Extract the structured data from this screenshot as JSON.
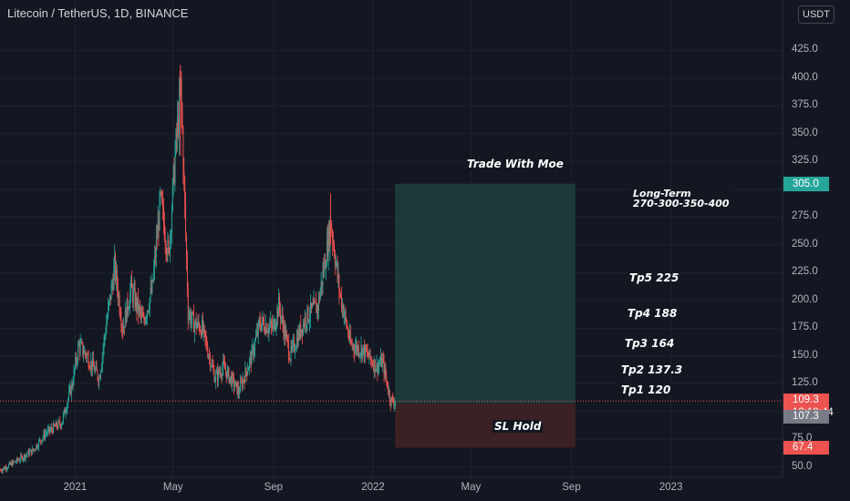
{
  "header": {
    "title": "Litecoin / TetherUS, 1D, BINANCE",
    "currency": "USDT"
  },
  "colors": {
    "up": "#26a69a",
    "down": "#ef5350",
    "target_zone": "#1b3a39",
    "stop_zone": "#3b2024",
    "background": "#131722"
  },
  "chart_data": {
    "type": "candlestick",
    "symbol": "LTCUSDT",
    "interval": "1D",
    "exchange": "BINANCE",
    "ylim": [
      45,
      455
    ],
    "y_ticks": [
      "425.0",
      "400.0",
      "375.0",
      "350.0",
      "325.0",
      "300.0",
      "275.0",
      "250.0",
      "225.0",
      "200.0",
      "175.0",
      "150.0",
      "125.0",
      "100.0",
      "75.0",
      "50.0"
    ],
    "x_ticks": [
      "2021",
      "May",
      "Sep",
      "2022",
      "May",
      "Sep",
      "2023"
    ],
    "close_price_path": [
      [
        "2020-10-01",
        47
      ],
      [
        "2020-10-20",
        55
      ],
      [
        "2020-11-10",
        65
      ],
      [
        "2020-11-25",
        80
      ],
      [
        "2020-12-15",
        90
      ],
      [
        "2020-12-28",
        125
      ],
      [
        "2021-01-05",
        160
      ],
      [
        "2021-01-15",
        150
      ],
      [
        "2021-01-30",
        130
      ],
      [
        "2021-02-08",
        180
      ],
      [
        "2021-02-18",
        230
      ],
      [
        "2021-02-28",
        175
      ],
      [
        "2021-03-10",
        210
      ],
      [
        "2021-03-25",
        180
      ],
      [
        "2021-04-05",
        210
      ],
      [
        "2021-04-15",
        290
      ],
      [
        "2021-04-25",
        240
      ],
      [
        "2021-05-03",
        330
      ],
      [
        "2021-05-10",
        390
      ],
      [
        "2021-05-12",
        350
      ],
      [
        "2021-05-19",
        190
      ],
      [
        "2021-05-25",
        180
      ],
      [
        "2021-06-05",
        175
      ],
      [
        "2021-06-21",
        130
      ],
      [
        "2021-07-01",
        140
      ],
      [
        "2021-07-20",
        118
      ],
      [
        "2021-08-05",
        150
      ],
      [
        "2021-08-15",
        180
      ],
      [
        "2021-08-31",
        175
      ],
      [
        "2021-09-07",
        195
      ],
      [
        "2021-09-21",
        150
      ],
      [
        "2021-10-10",
        185
      ],
      [
        "2021-10-25",
        195
      ],
      [
        "2021-11-10",
        270
      ],
      [
        "2021-11-20",
        210
      ],
      [
        "2021-12-04",
        160
      ],
      [
        "2021-12-20",
        155
      ],
      [
        "2022-01-05",
        140
      ],
      [
        "2022-01-12",
        145
      ],
      [
        "2022-01-22",
        110
      ],
      [
        "2022-01-28",
        109.3
      ]
    ],
    "last_price": 109.3,
    "countdown": "12:19:44",
    "position": {
      "entry": 107.3,
      "target": 305.0,
      "stop": 67.4
    },
    "price_badges": {
      "target": "305.0",
      "last": "109.3",
      "entry": "107.3",
      "stop": "67.4"
    },
    "annotations": {
      "title": "Trade With Moe",
      "long_term_line1": "Long-Term",
      "long_term_line2": "270-300-350-400",
      "tp5": "Tp5 225",
      "tp4": "Tp4 188",
      "tp3": "Tp3 164",
      "tp2": "Tp2 137.3",
      "tp1": "Tp1 120",
      "sl": "SL Hold"
    }
  }
}
